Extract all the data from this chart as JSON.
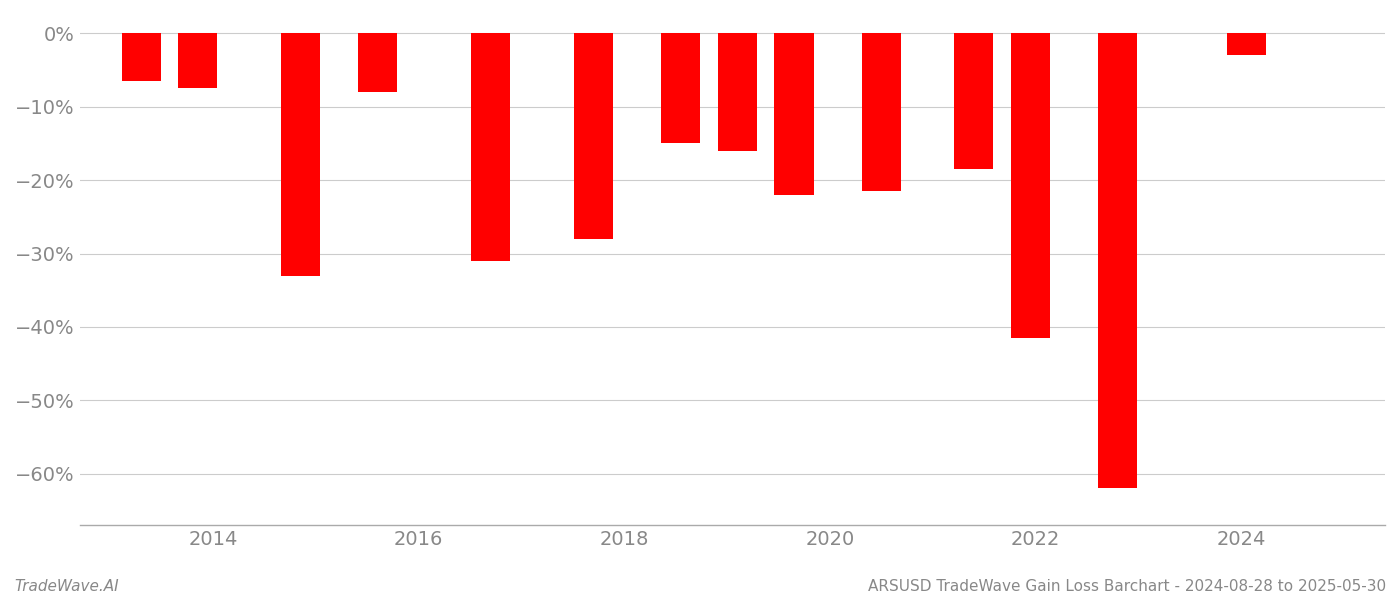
{
  "x_positions": [
    2013.3,
    2013.85,
    2014.85,
    2015.6,
    2016.7,
    2017.7,
    2018.55,
    2019.1,
    2019.65,
    2020.5,
    2021.4,
    2021.95,
    2022.8,
    2024.05
  ],
  "values": [
    -6.5,
    -7.5,
    -33.0,
    -8.0,
    -31.0,
    -28.0,
    -15.0,
    -16.0,
    -22.0,
    -21.5,
    -18.5,
    -41.5,
    -62.0,
    -3.0
  ],
  "bar_width": 0.38,
  "bar_color": "#ff0000",
  "ylim": [
    -67,
    2.5
  ],
  "yticks": [
    0,
    -10,
    -20,
    -30,
    -40,
    -50,
    -60
  ],
  "ytick_labels": [
    "0%",
    "−10%",
    "−20%",
    "−30%",
    "−40%",
    "−50%",
    "−60%"
  ],
  "xlim": [
    2012.7,
    2025.4
  ],
  "xticks": [
    2014,
    2016,
    2018,
    2020,
    2022,
    2024
  ],
  "footer_left": "TradeWave.AI",
  "footer_right": "ARSUSD TradeWave Gain Loss Barchart - 2024-08-28 to 2025-05-30",
  "grid_color": "#cccccc",
  "text_color": "#888888",
  "bg_color": "#ffffff",
  "footer_fontsize": 11,
  "tick_fontsize": 14
}
